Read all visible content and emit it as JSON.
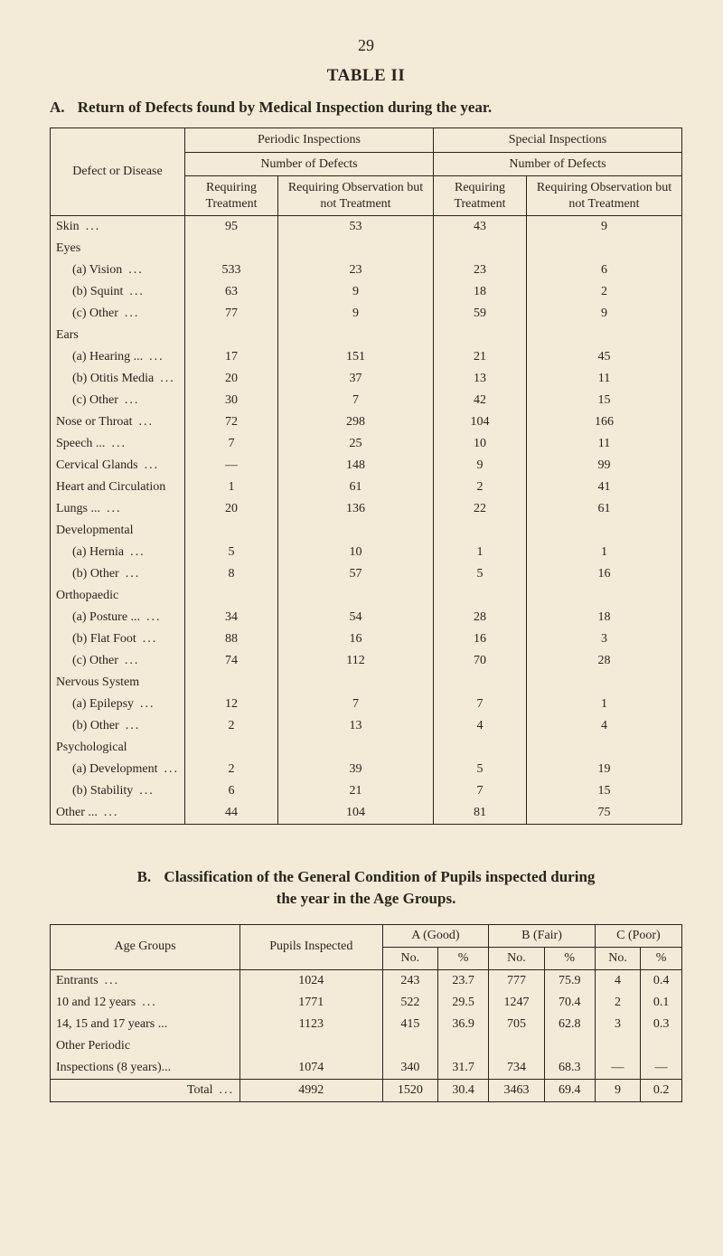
{
  "page_number": "29",
  "table2_title": "TABLE II",
  "tableA": {
    "subtitle_letter": "A.",
    "subtitle_text": "Return of Defects found by Medical Inspection during the year.",
    "colhead_defect": "Defect or Disease",
    "head_periodic": "Periodic Inspections",
    "head_special": "Special Inspections",
    "head_numdefects": "Number of Defects",
    "head_req_treat": "Requiring Treatment",
    "head_req_obs": "Requiring Observation but not Treatment",
    "rows": [
      {
        "label": "Skin",
        "indent": 0,
        "dots": true,
        "v": [
          "95",
          "53",
          "43",
          "9"
        ]
      },
      {
        "label": "Eyes",
        "indent": 0,
        "dots": false,
        "v": [
          "",
          "",
          "",
          ""
        ]
      },
      {
        "label": "(a) Vision",
        "indent": 1,
        "dots": true,
        "v": [
          "533",
          "23",
          "23",
          "6"
        ]
      },
      {
        "label": "(b) Squint",
        "indent": 1,
        "dots": true,
        "v": [
          "63",
          "9",
          "18",
          "2"
        ]
      },
      {
        "label": "(c) Other",
        "indent": 1,
        "dots": true,
        "v": [
          "77",
          "9",
          "59",
          "9"
        ]
      },
      {
        "label": "Ears",
        "indent": 0,
        "dots": false,
        "v": [
          "",
          "",
          "",
          ""
        ]
      },
      {
        "label": "(a) Hearing ...",
        "indent": 1,
        "dots": true,
        "v": [
          "17",
          "151",
          "21",
          "45"
        ]
      },
      {
        "label": "(b) Otitis Media",
        "indent": 1,
        "dots": true,
        "v": [
          "20",
          "37",
          "13",
          "11"
        ]
      },
      {
        "label": "(c) Other",
        "indent": 1,
        "dots": true,
        "v": [
          "30",
          "7",
          "42",
          "15"
        ]
      },
      {
        "label": "Nose or Throat",
        "indent": 0,
        "dots": true,
        "v": [
          "72",
          "298",
          "104",
          "166"
        ]
      },
      {
        "label": "Speech ...",
        "indent": 0,
        "dots": true,
        "v": [
          "7",
          "25",
          "10",
          "11"
        ]
      },
      {
        "label": "Cervical Glands",
        "indent": 0,
        "dots": true,
        "v": [
          "—",
          "148",
          "9",
          "99"
        ]
      },
      {
        "label": "Heart and Circulation",
        "indent": 0,
        "dots": false,
        "v": [
          "1",
          "61",
          "2",
          "41"
        ]
      },
      {
        "label": "Lungs ...",
        "indent": 0,
        "dots": true,
        "v": [
          "20",
          "136",
          "22",
          "61"
        ]
      },
      {
        "label": "Developmental",
        "indent": 0,
        "dots": false,
        "v": [
          "",
          "",
          "",
          ""
        ]
      },
      {
        "label": "(a) Hernia",
        "indent": 1,
        "dots": true,
        "v": [
          "5",
          "10",
          "1",
          "1"
        ]
      },
      {
        "label": "(b) Other",
        "indent": 1,
        "dots": true,
        "v": [
          "8",
          "57",
          "5",
          "16"
        ]
      },
      {
        "label": "Orthopaedic",
        "indent": 0,
        "dots": false,
        "v": [
          "",
          "",
          "",
          ""
        ]
      },
      {
        "label": "(a) Posture ...",
        "indent": 1,
        "dots": true,
        "v": [
          "34",
          "54",
          "28",
          "18"
        ]
      },
      {
        "label": "(b) Flat Foot",
        "indent": 1,
        "dots": true,
        "v": [
          "88",
          "16",
          "16",
          "3"
        ]
      },
      {
        "label": "(c) Other",
        "indent": 1,
        "dots": true,
        "v": [
          "74",
          "112",
          "70",
          "28"
        ]
      },
      {
        "label": "Nervous System",
        "indent": 0,
        "dots": false,
        "v": [
          "",
          "",
          "",
          ""
        ]
      },
      {
        "label": "(a) Epilepsy",
        "indent": 1,
        "dots": true,
        "v": [
          "12",
          "7",
          "7",
          "1"
        ]
      },
      {
        "label": "(b) Other",
        "indent": 1,
        "dots": true,
        "v": [
          "2",
          "13",
          "4",
          "4"
        ]
      },
      {
        "label": "Psychological",
        "indent": 0,
        "dots": false,
        "v": [
          "",
          "",
          "",
          ""
        ]
      },
      {
        "label": "(a) Development",
        "indent": 1,
        "dots": true,
        "v": [
          "2",
          "39",
          "5",
          "19"
        ]
      },
      {
        "label": "(b) Stability",
        "indent": 1,
        "dots": true,
        "v": [
          "6",
          "21",
          "7",
          "15"
        ]
      },
      {
        "label": "Other ...",
        "indent": 0,
        "dots": true,
        "v": [
          "44",
          "104",
          "81",
          "75"
        ]
      }
    ]
  },
  "tableB": {
    "subtitle_letter": "B.",
    "subtitle_line1": "Classification of the General Condition of Pupils inspected during",
    "subtitle_line2": "the year in the Age Groups.",
    "head_age": "Age Groups",
    "head_pupils": "Pupils Inspected",
    "head_A": "A (Good)",
    "head_B": "B (Fair)",
    "head_C": "C (Poor)",
    "head_no": "No.",
    "head_pct": "%",
    "rows": [
      {
        "label": "Entrants",
        "dots": true,
        "v": [
          "1024",
          "243",
          "23.7",
          "777",
          "75.9",
          "4",
          "0.4"
        ]
      },
      {
        "label": "10 and 12 years",
        "dots": true,
        "v": [
          "1771",
          "522",
          "29.5",
          "1247",
          "70.4",
          "2",
          "0.1"
        ]
      },
      {
        "label": "14, 15 and 17 years ...",
        "dots": false,
        "v": [
          "1123",
          "415",
          "36.9",
          "705",
          "62.8",
          "3",
          "0.3"
        ]
      },
      {
        "label": "Other Periodic",
        "dots": false,
        "v": [
          "",
          "",
          "",
          "",
          "",
          "",
          ""
        ]
      },
      {
        "label": "Inspections (8 years)...",
        "dots": false,
        "v": [
          "1074",
          "340",
          "31.7",
          "734",
          "68.3",
          "—",
          "—"
        ]
      }
    ],
    "total_label": "Total",
    "total": [
      "4992",
      "1520",
      "30.4",
      "3463",
      "69.4",
      "9",
      "0.2"
    ]
  },
  "colors": {
    "paper": "#f4ead8",
    "ink": "#2a241a"
  }
}
